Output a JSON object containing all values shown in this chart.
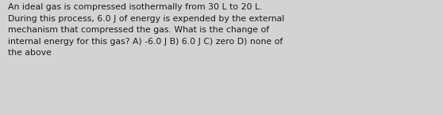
{
  "text": "An ideal gas is compressed isothermally from 30 L to 20 L.\nDuring this process, 6.0 J of energy is expended by the external\nmechanism that compressed the gas. What is the change of\ninternal energy for this gas? A) -6.0 J B) 6.0 J C) zero D) none of\nthe above",
  "background_color": "#d3d3d3",
  "text_color": "#1a1a1a",
  "font_size": 7.8,
  "font_family": "DejaVu Sans",
  "fig_width": 5.58,
  "fig_height": 1.46,
  "dpi": 100
}
